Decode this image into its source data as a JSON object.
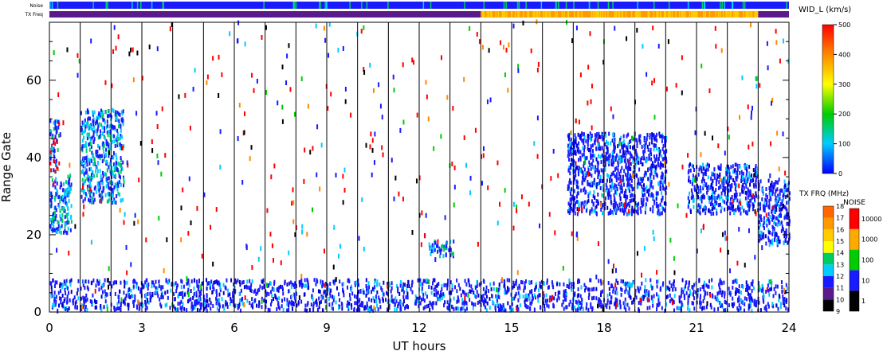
{
  "chart_data": {
    "type": "heatmap",
    "title": "",
    "xlabel": "UT hours",
    "ylabel": "Range Gate",
    "xlim": [
      0,
      24
    ],
    "ylim": [
      0,
      75
    ],
    "x_ticks": [
      "0",
      "3",
      "6",
      "9",
      "12",
      "15",
      "18",
      "21",
      "24"
    ],
    "y_ticks": [
      "0",
      "20",
      "40",
      "60"
    ],
    "x_tick_values": [
      0,
      3,
      6,
      9,
      12,
      15,
      18,
      21,
      24
    ],
    "y_tick_values": [
      0,
      20,
      40,
      60
    ],
    "scan_boundaries_hours": [
      1,
      2,
      3,
      4,
      5,
      6,
      7,
      8,
      9,
      10,
      11,
      12,
      13,
      14,
      15,
      16,
      17,
      18,
      19,
      20,
      21,
      22,
      23
    ],
    "top_strips": {
      "noise_label": "Noise",
      "txfreq_label": "TX Freq",
      "noise_color": "#1a1aff",
      "txfreq_segments": [
        {
          "from": 0,
          "to": 14,
          "color": "#5a1a8c"
        },
        {
          "from": 14,
          "to": 23,
          "color": "#ff9900"
        },
        {
          "from": 23,
          "to": 24,
          "color": "#5a1a8c"
        }
      ]
    },
    "scatter_regions": [
      {
        "from": 0.0,
        "to": 0.7,
        "gate_min": 20,
        "gate_max": 35,
        "value": "medium"
      },
      {
        "from": 0.0,
        "to": 0.3,
        "gate_min": 36,
        "gate_max": 50,
        "value": "high"
      },
      {
        "from": 1.0,
        "to": 2.4,
        "gate_min": 28,
        "gate_max": 52,
        "value": "medium"
      },
      {
        "from": 16.8,
        "to": 20.0,
        "gate_min": 25,
        "gate_max": 46,
        "value": "low"
      },
      {
        "from": 20.7,
        "to": 23.0,
        "gate_min": 25,
        "gate_max": 38,
        "value": "low"
      },
      {
        "from": 23.0,
        "to": 24.0,
        "gate_min": 17,
        "gate_max": 34,
        "value": "low"
      },
      {
        "from": 12.3,
        "to": 13.1,
        "gate_min": 14,
        "gate_max": 18,
        "value": "medium"
      },
      {
        "from": 0.0,
        "to": 24.0,
        "gate_min": 0,
        "gate_max": 8,
        "value": "low"
      }
    ],
    "width_colorbar": {
      "title": "WID_L (km/s)",
      "ticks": [
        "0",
        "100",
        "200",
        "300",
        "400",
        "500"
      ],
      "colors": [
        "#0000ff",
        "#00ccff",
        "#00cc00",
        "#ffff00",
        "#ff8800",
        "#ff0000"
      ]
    },
    "txfreq_colorbar": {
      "title": "TX FRQ (MHz)",
      "ticks": [
        "9",
        "10",
        "11",
        "12",
        "13",
        "14",
        "15",
        "16",
        "17",
        "18"
      ],
      "colors": [
        "#000000",
        "#5a1a8c",
        "#1a1aff",
        "#00ccff",
        "#00cc66",
        "#ffff00",
        "#ffcc00",
        "#ff9900",
        "#ff6600",
        "#ff0000"
      ]
    },
    "noise_colorbar": {
      "title": "NOISE",
      "ticks": [
        "1",
        "10",
        "100",
        "1000",
        "10000"
      ],
      "colors": [
        "#000000",
        "#1a1aff",
        "#00cc00",
        "#ffaa00",
        "#ff0000"
      ]
    }
  }
}
